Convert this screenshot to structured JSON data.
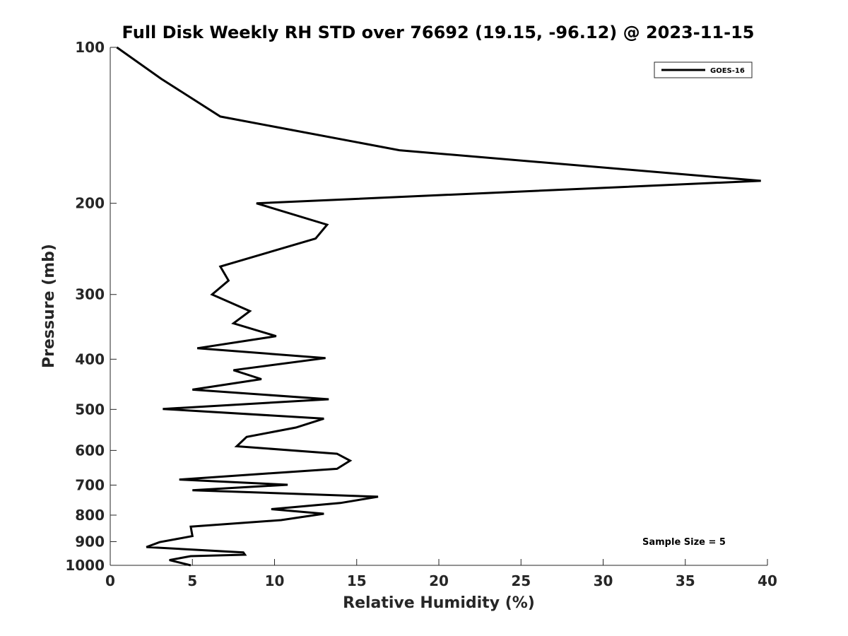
{
  "chart_data": {
    "type": "line",
    "title": "Full Disk Weekly RH STD over 76692 (19.15, -96.12) @ 2023-11-15",
    "xlabel": "Relative Humidity (%)",
    "ylabel": "Pressure (mb)",
    "xlim": [
      0,
      40
    ],
    "ylim": [
      100,
      1000
    ],
    "yscale": "log",
    "yreversed": true,
    "xticks": [
      0,
      5,
      10,
      15,
      20,
      25,
      30,
      35,
      40
    ],
    "yticks": [
      100,
      200,
      300,
      400,
      500,
      600,
      700,
      800,
      900,
      1000
    ],
    "grid": false,
    "legend_position": "top-right",
    "series": [
      {
        "name": "GOES-16",
        "color": "#000000",
        "x": [
          0.4,
          3.1,
          6.7,
          17.6,
          39.6,
          8.9,
          13.2,
          12.5,
          6.7,
          7.2,
          6.2,
          8.5,
          7.5,
          10.1,
          5.3,
          13.1,
          7.5,
          9.2,
          5.0,
          13.3,
          3.2,
          13.0,
          11.3,
          8.3,
          7.7,
          13.8,
          14.6,
          13.8,
          9.5,
          4.2,
          10.8,
          5.0,
          16.3,
          14.0,
          9.8,
          13.0,
          10.4,
          4.9,
          5.0,
          3.0,
          2.2,
          8.1,
          8.2,
          4.9,
          3.6,
          4.9
        ],
        "y": [
          100,
          115,
          136,
          158,
          181,
          200,
          220,
          234,
          265,
          282,
          300,
          323,
          341,
          361,
          381,
          398,
          420,
          437,
          458,
          478,
          499,
          521,
          542,
          565,
          589,
          609,
          628,
          651,
          665,
          683,
          699,
          716,
          737,
          758,
          779,
          795,
          818,
          842,
          878,
          902,
          922,
          944,
          954,
          960,
          977,
          1000
        ]
      }
    ],
    "annotation": "Sample Size = 5"
  }
}
